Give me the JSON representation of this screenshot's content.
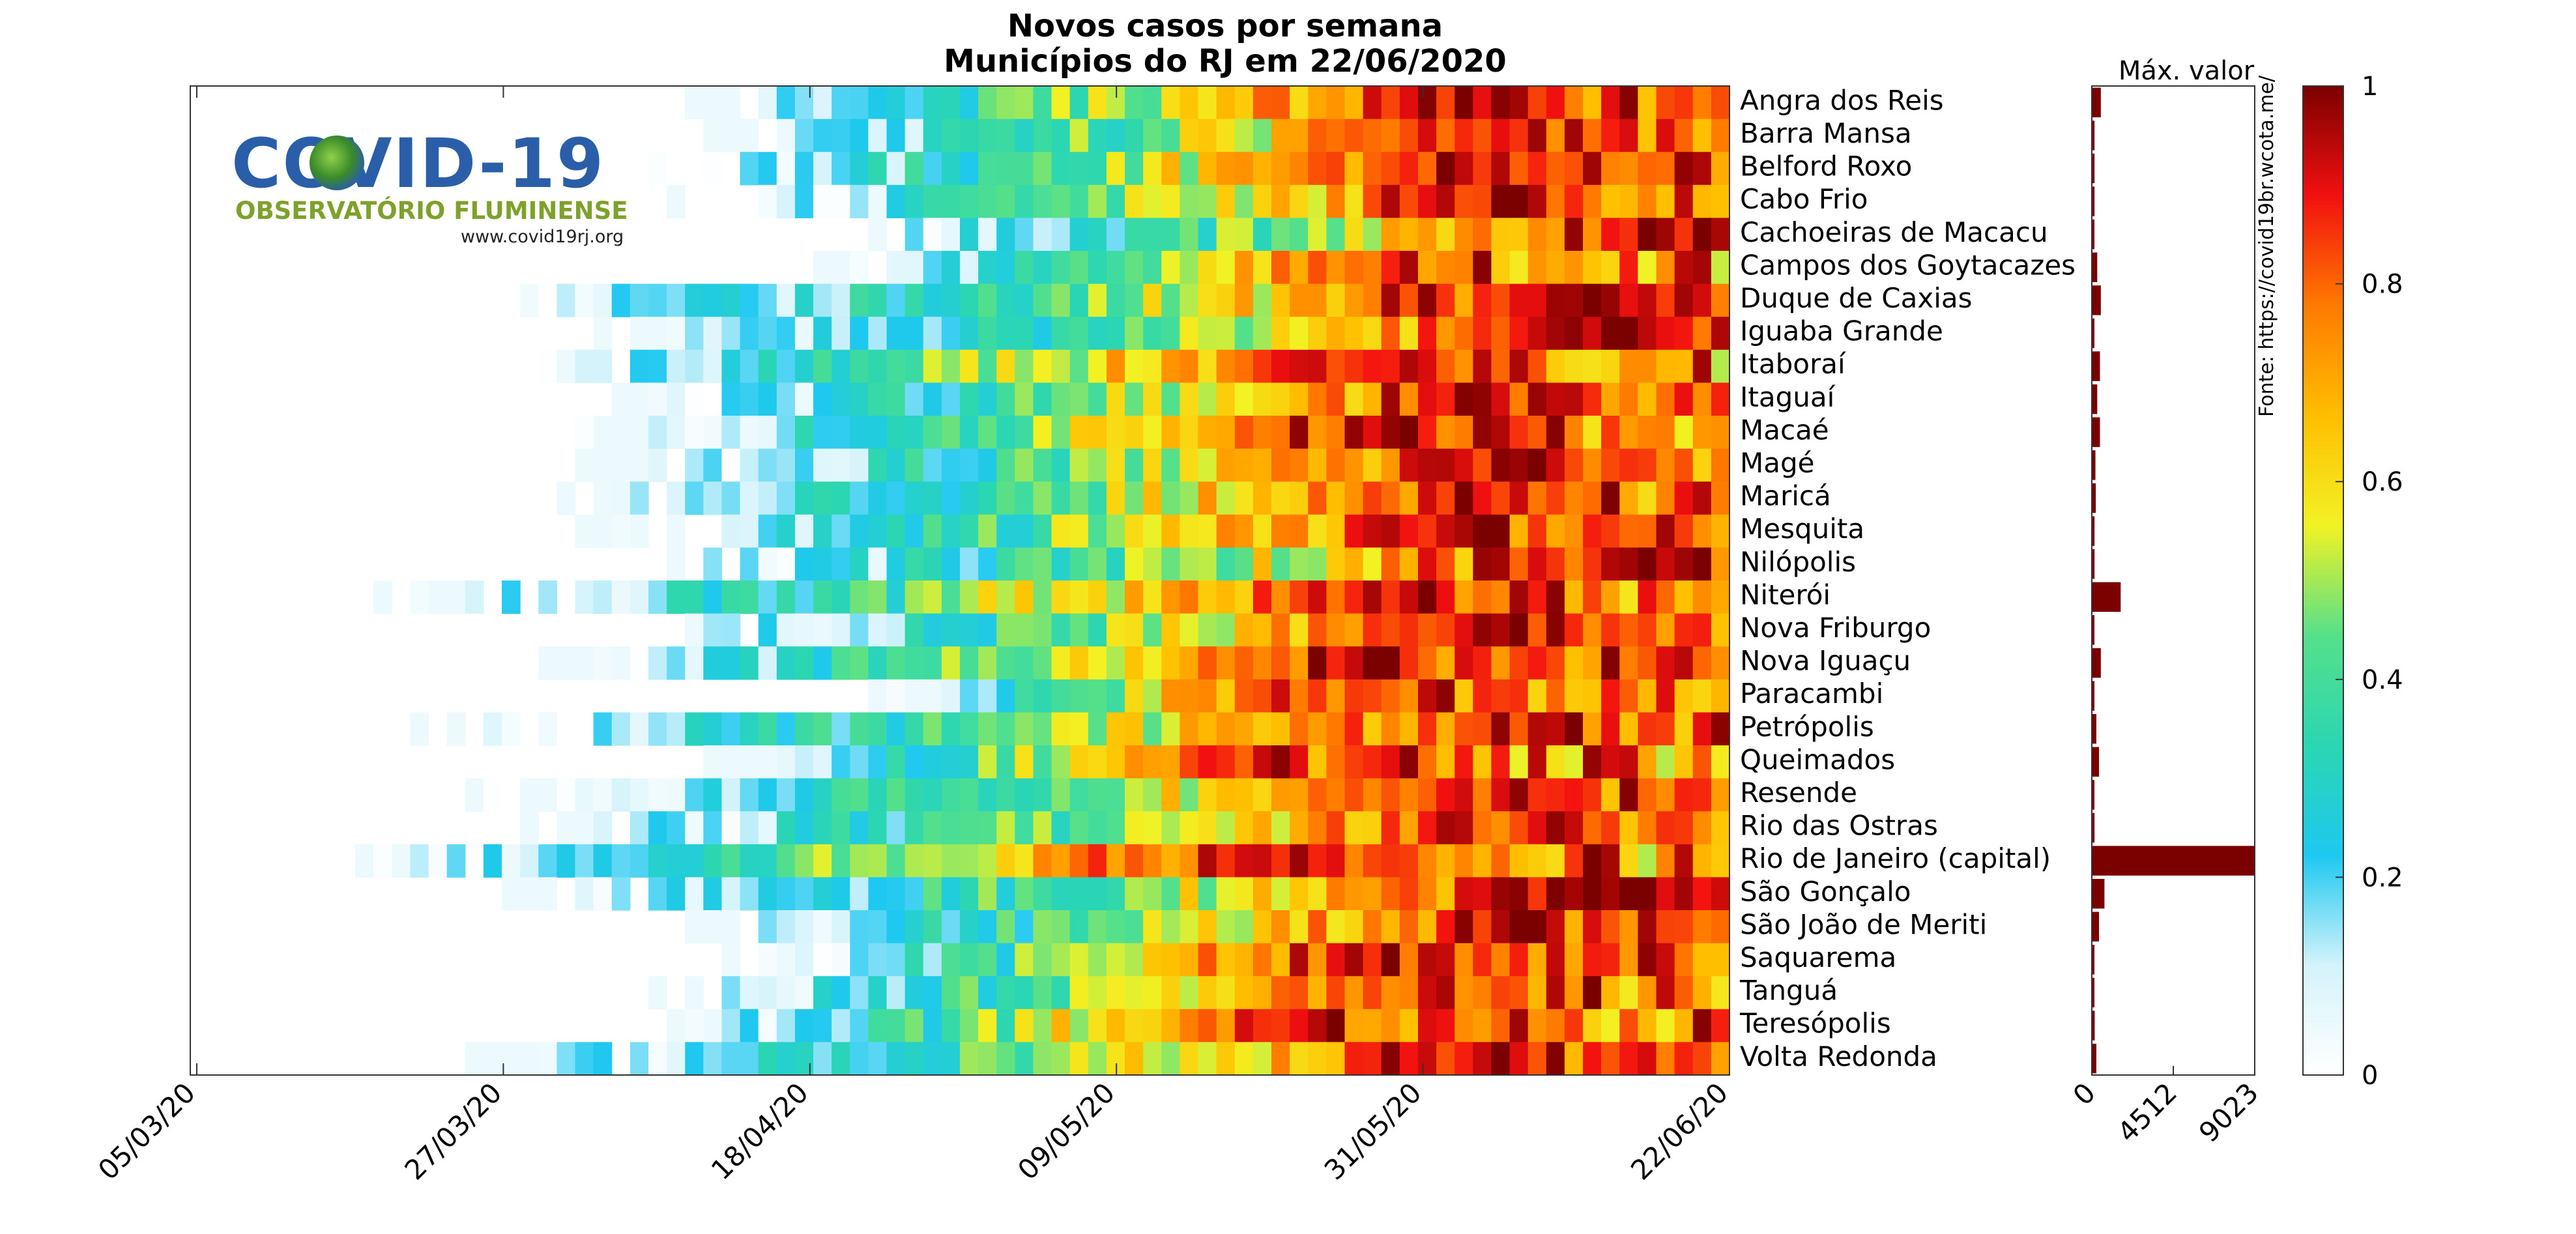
{
  "header": {
    "title_line1": "Novos casos por semana",
    "title_line2": "Municípios do RJ em 22/06/2020"
  },
  "logo": {
    "title": "COVID-19",
    "subtitle": "OBSERVATÓRIO FLUMINENSE",
    "url": "www.covid19rj.org"
  },
  "side_panel": {
    "title": "Máx. valor",
    "source": "Fonte: https://covid19br.wcota.me/"
  },
  "colorbar": {
    "ticks": [
      "0",
      "0.2",
      "0.4",
      "0.6",
      "0.8",
      "1"
    ],
    "tick_values": [
      0,
      0.2,
      0.4,
      0.6,
      0.8,
      1
    ],
    "colormap": [
      "#ffffff",
      "#d4f3fb",
      "#1ec8f0",
      "#2bd6b2",
      "#55e08a",
      "#f2f224",
      "#ffbe00",
      "#ff7a00",
      "#f21010",
      "#7b0000"
    ]
  },
  "chart_data": [
    {
      "type": "heatmap",
      "title": "Novos casos por semana / Municípios do RJ em 22/06/2020",
      "x_tick_labels": [
        "05/03/20",
        "27/03/20",
        "18/04/20",
        "09/05/20",
        "31/05/20",
        "22/06/20"
      ],
      "rows": [
        "Angra dos Reis",
        "Barra Mansa",
        "Belford Roxo",
        "Cabo Frio",
        "Cachoeiras de Macacu",
        "Campos dos Goytacazes",
        "Duque de Caxias",
        "Iguaba Grande",
        "Itaboraí",
        "Itaguaí",
        "Macaé",
        "Magé",
        "Maricá",
        "Mesquita",
        "Nilópolis",
        "Niterói",
        "Nova Friburgo",
        "Nova Iguaçu",
        "Paracambi",
        "Petrópolis",
        "Queimados",
        "Resende",
        "Rio das Ostras",
        "Rio de Janeiro (capital)",
        "São Gonçalo",
        "São João de Meriti",
        "Saquarema",
        "Tanguá",
        "Teresópolis",
        "Volta Redonda"
      ],
      "values_range": [
        0,
        1
      ],
      "series": [
        {
          "name": "Angra dos Reis",
          "start": 0.3,
          "peak": 0.86,
          "peak_value": 1.0
        },
        {
          "name": "Barra Mansa",
          "start": 0.32,
          "peak": 0.88,
          "peak_value": 0.95
        },
        {
          "name": "Belford Roxo",
          "start": 0.3,
          "peak": 0.84,
          "peak_value": 0.95
        },
        {
          "name": "Cabo Frio",
          "start": 0.31,
          "peak": 0.89,
          "peak_value": 0.95
        },
        {
          "name": "Cachoeiras de Macacu",
          "start": 0.4,
          "peak": 0.99,
          "peak_value": 1.0
        },
        {
          "name": "Campos dos Goytacazes",
          "start": 0.4,
          "peak": 0.8,
          "peak_value": 0.9
        },
        {
          "name": "Duque de Caxias",
          "start": 0.18,
          "peak": 0.98,
          "peak_value": 1.0
        },
        {
          "name": "Iguaba Grande",
          "start": 0.26,
          "peak": 0.98,
          "peak_value": 1.0
        },
        {
          "name": "Itaboraí",
          "start": 0.2,
          "peak": 0.78,
          "peak_value": 0.95
        },
        {
          "name": "Itaguaí",
          "start": 0.25,
          "peak": 0.9,
          "peak_value": 0.95
        },
        {
          "name": "Macaé",
          "start": 0.25,
          "peak": 0.8,
          "peak_value": 1.0
        },
        {
          "name": "Magé",
          "start": 0.25,
          "peak": 0.88,
          "peak_value": 0.95
        },
        {
          "name": "Maricá",
          "start": 0.22,
          "peak": 0.87,
          "peak_value": 0.95
        },
        {
          "name": "Mesquita",
          "start": 0.25,
          "peak": 0.86,
          "peak_value": 0.95
        },
        {
          "name": "Nilópolis",
          "start": 0.27,
          "peak": 0.99,
          "peak_value": 1.0
        },
        {
          "name": "Niterói",
          "start": 0.12,
          "peak": 0.82,
          "peak_value": 0.95
        },
        {
          "name": "Nova Friburgo",
          "start": 0.28,
          "peak": 0.87,
          "peak_value": 0.95
        },
        {
          "name": "Nova Iguaçu",
          "start": 0.22,
          "peak": 0.8,
          "peak_value": 1.0
        },
        {
          "name": "Paracambi",
          "start": 0.44,
          "peak": 0.72,
          "peak_value": 0.95
        },
        {
          "name": "Petrópolis",
          "start": 0.14,
          "peak": 0.91,
          "peak_value": 0.95
        },
        {
          "name": "Queimados",
          "start": 0.33,
          "peak": 0.72,
          "peak_value": 0.95
        },
        {
          "name": "Resende",
          "start": 0.18,
          "peak": 0.88,
          "peak_value": 0.95
        },
        {
          "name": "Rio das Ostras",
          "start": 0.21,
          "peak": 0.9,
          "peak_value": 0.95
        },
        {
          "name": "Rio de Janeiro (capital)",
          "start": 0.09,
          "peak": 0.74,
          "peak_value": 1.0
        },
        {
          "name": "São Gonçalo",
          "start": 0.2,
          "peak": 0.96,
          "peak_value": 1.0
        },
        {
          "name": "São João de Meriti",
          "start": 0.3,
          "peak": 0.88,
          "peak_value": 0.95
        },
        {
          "name": "Saquarema",
          "start": 0.34,
          "peak": 0.79,
          "peak_value": 1.0
        },
        {
          "name": "Tanguá",
          "start": 0.28,
          "peak": 0.82,
          "peak_value": 0.95
        },
        {
          "name": "Teresópolis",
          "start": 0.29,
          "peak": 0.75,
          "peak_value": 1.0
        },
        {
          "name": "Volta Redonda",
          "start": 0.17,
          "peak": 0.89,
          "peak_value": 0.95
        }
      ],
      "colorbar_ticks": [
        0,
        0.2,
        0.4,
        0.6,
        0.8,
        1
      ]
    },
    {
      "type": "bar",
      "title": "Máx. valor",
      "orientation": "horizontal",
      "categories": [
        "Angra dos Reis",
        "Barra Mansa",
        "Belford Roxo",
        "Cabo Frio",
        "Cachoeiras de Macacu",
        "Campos dos Goytacazes",
        "Duque de Caxias",
        "Iguaba Grande",
        "Itaboraí",
        "Itaguaí",
        "Macaé",
        "Magé",
        "Maricá",
        "Mesquita",
        "Nilópolis",
        "Niterói",
        "Nova Friburgo",
        "Nova Iguaçu",
        "Paracambi",
        "Petrópolis",
        "Queimados",
        "Resende",
        "Rio das Ostras",
        "Rio de Janeiro (capital)",
        "São Gonçalo",
        "São João de Meriti",
        "Saquarema",
        "Tanguá",
        "Teresópolis",
        "Volta Redonda"
      ],
      "values": [
        500,
        150,
        150,
        150,
        100,
        300,
        500,
        80,
        450,
        300,
        450,
        200,
        220,
        150,
        150,
        1600,
        130,
        500,
        60,
        250,
        400,
        100,
        150,
        9023,
        700,
        400,
        120,
        60,
        160,
        250
      ],
      "x_ticks": [
        0,
        4512,
        9023
      ],
      "xlim": [
        0,
        9023
      ]
    }
  ]
}
